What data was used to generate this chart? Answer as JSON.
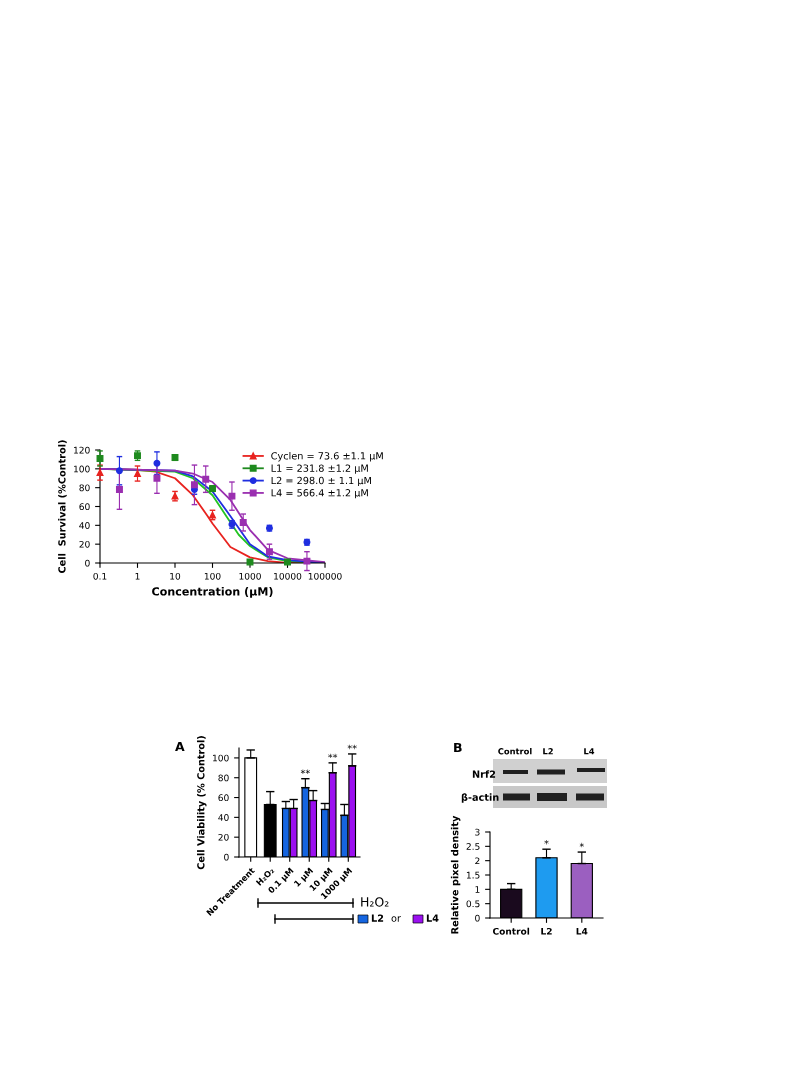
{
  "chart_data": [
    {
      "type": "scatter",
      "xlabel": "Concentration (µM)",
      "ylabel": "Cell  Survival (%Control)",
      "log": "x",
      "xlim": [
        0.1,
        100000
      ],
      "xticks": [
        0.1,
        1,
        10,
        100,
        1000,
        10000,
        100000
      ],
      "ylim": [
        0,
        120
      ],
      "yticks": [
        0,
        20,
        40,
        60,
        80,
        100,
        120
      ],
      "legend": "top right",
      "series": [
        {
          "name": "Cyclen = 73.6 ±1.1 µM",
          "color": "#e8231f",
          "marker": "triangle",
          "x": [
            0.1,
            1,
            10,
            100
          ],
          "values": [
            96,
            95,
            71,
            51
          ],
          "errors": [
            8,
            8,
            5,
            5
          ]
        },
        {
          "name": "L1 = 231.8 ±1.2 µM",
          "color": "#1e8a1e",
          "marker": "square",
          "x": [
            0.1,
            1,
            10,
            100,
            1000,
            10000
          ],
          "values": [
            111,
            114,
            112,
            79,
            1,
            1
          ],
          "errors": [
            8,
            5,
            3,
            3,
            1,
            1
          ]
        },
        {
          "name": "L2 = 298.0 ± 1.1 µM",
          "color": "#1f2ee0",
          "marker": "circle",
          "x": [
            0.33,
            3.3,
            33,
            330,
            3300,
            33000
          ],
          "values": [
            98,
            106,
            78,
            41,
            37,
            22
          ],
          "errors": [
            15,
            12,
            5,
            4,
            3,
            3
          ]
        },
        {
          "name": "L4 = 566.4 ±1.2 µM",
          "color": "#9a2fb0",
          "marker": "square",
          "x": [
            0.33,
            3.3,
            33,
            66,
            330,
            660,
            3300,
            33000
          ],
          "values": [
            78,
            90,
            83,
            89,
            71,
            43,
            12,
            2
          ],
          "errors": [
            21,
            16,
            21,
            14,
            15,
            9,
            8,
            10
          ]
        },
        {
          "type": "line",
          "color": "#e8231f",
          "x": [
            0.1,
            1,
            3,
            10,
            30,
            73.6,
            100,
            300,
            1000,
            3000,
            10000,
            100000
          ],
          "values": [
            100,
            99,
            97,
            90,
            72,
            50,
            42,
            17,
            6,
            2,
            0,
            0
          ]
        },
        {
          "type": "line",
          "color": "#22c422",
          "x": [
            0.1,
            10,
            30,
            100,
            231.8,
            500,
            1000,
            3000,
            10000,
            100000
          ],
          "values": [
            100,
            97,
            90,
            72,
            50,
            30,
            18,
            6,
            2,
            0
          ]
        },
        {
          "type": "line",
          "color": "#1f2ee0",
          "x": [
            0.1,
            10,
            30,
            100,
            298,
            1000,
            3000,
            10000,
            100000
          ],
          "values": [
            100,
            98,
            92,
            76,
            50,
            20,
            7,
            3,
            0
          ]
        },
        {
          "type": "line",
          "color": "#9a2fb0",
          "x": [
            0.1,
            10,
            30,
            100,
            300,
            566,
            1000,
            3000,
            10000,
            100000
          ],
          "values": [
            100,
            98,
            95,
            86,
            67,
            50,
            35,
            14,
            5,
            1
          ]
        }
      ]
    },
    {
      "type": "bar",
      "ylabel": "Cell Viability (% Control)",
      "categories": [
        "No Treatment",
        "H₂O₂",
        "0.1 µM",
        "1 µM",
        "10 µM",
        "1000 µM"
      ],
      "ylim": [
        0,
        110
      ],
      "yticks": [
        0,
        20,
        40,
        60,
        80,
        100
      ],
      "legend": "bottom",
      "annotations": [
        "A",
        "H₂O₂",
        "or"
      ],
      "series": [
        {
          "colors": [
            "#ffffff",
            "#000000",
            null,
            null,
            null,
            null
          ],
          "values": [
            100,
            53,
            null,
            null,
            null,
            null
          ],
          "errors": [
            8,
            13,
            null,
            null,
            null,
            null
          ]
        },
        {
          "name": "L2",
          "color": "#1565e0",
          "values": [
            null,
            null,
            49,
            70,
            48,
            42
          ],
          "errors": [
            null,
            null,
            7,
            9,
            6,
            11
          ],
          "value_labels": [
            null,
            null,
            null,
            "**",
            null,
            null
          ]
        },
        {
          "name": "L4",
          "color": "#9b10f0",
          "values": [
            null,
            null,
            49,
            57,
            85,
            92
          ],
          "errors": [
            null,
            null,
            9,
            10,
            10,
            12
          ],
          "value_labels": [
            null,
            null,
            null,
            null,
            "**",
            "**"
          ]
        }
      ]
    },
    {
      "type": "bar",
      "ylabel": "Relative pixel density",
      "categories": [
        "Control",
        "L2",
        "L4"
      ],
      "ylim": [
        0,
        3
      ],
      "yticks": [
        0,
        0.5,
        1,
        1.5,
        2,
        2.5,
        3
      ],
      "annotations": [
        "B",
        "Nrf2",
        "β-actin",
        "Control",
        "L2",
        "L4"
      ],
      "series": [
        {
          "colors": [
            "#1a0a1e",
            "#1e9bf0",
            "#9b5fc0"
          ],
          "values": [
            1.0,
            2.1,
            1.9
          ],
          "errors": [
            0.2,
            0.3,
            0.4
          ],
          "value_labels": [
            null,
            "*",
            "*"
          ]
        }
      ]
    }
  ]
}
